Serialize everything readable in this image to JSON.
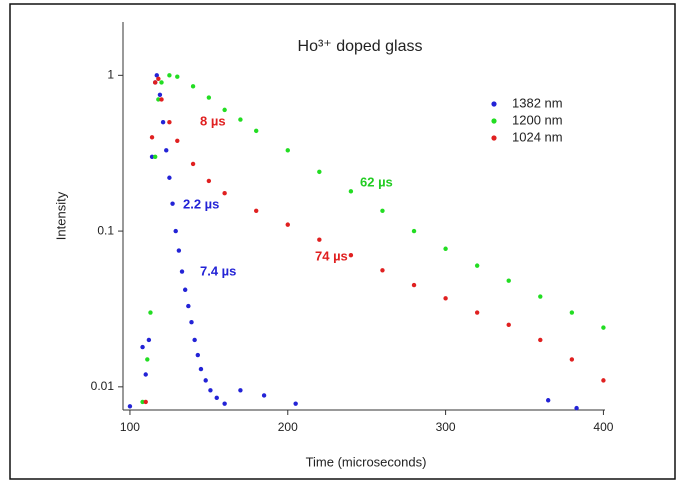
{
  "chart_data": {
    "type": "scatter",
    "title": "Ho³⁺ doped glass",
    "x_label": "Time (microseconds)",
    "y_label": "Intensity",
    "log_y": true,
    "xlim": [
      95.6,
      401
    ],
    "ylim": [
      0.0071,
      2.2
    ],
    "xticks": [
      100,
      200,
      300,
      400
    ],
    "yticks": [
      1,
      0.1,
      0.01
    ],
    "legend": "upper right",
    "series": [
      {
        "name": "1382 nm",
        "color": "#2323d6",
        "x": [
          100,
          108,
          110,
          112,
          114,
          116,
          117,
          119,
          121,
          123,
          125,
          127,
          129,
          131,
          133,
          135,
          137,
          139,
          141,
          143,
          145,
          148,
          151,
          155,
          160,
          170,
          185,
          205,
          365,
          383
        ],
        "values": [
          0.0075,
          0.018,
          0.012,
          0.02,
          0.3,
          0.9,
          1.0,
          0.75,
          0.5,
          0.33,
          0.22,
          0.15,
          0.1,
          0.075,
          0.055,
          0.042,
          0.033,
          0.026,
          0.02,
          0.016,
          0.013,
          0.011,
          0.0095,
          0.0085,
          0.0078,
          0.0095,
          0.0088,
          0.0078,
          0.0082,
          0.0073
        ]
      },
      {
        "name": "1200 nm",
        "color": "#22dd22",
        "x": [
          108,
          111,
          113,
          116,
          118,
          120,
          125,
          130,
          140,
          150,
          160,
          170,
          180,
          200,
          220,
          240,
          260,
          280,
          300,
          320,
          340,
          360,
          380,
          400
        ],
        "values": [
          0.008,
          0.015,
          0.03,
          0.3,
          0.7,
          0.9,
          1.0,
          0.98,
          0.85,
          0.72,
          0.6,
          0.52,
          0.44,
          0.33,
          0.24,
          0.18,
          0.135,
          0.1,
          0.077,
          0.06,
          0.048,
          0.038,
          0.03,
          0.024
        ]
      },
      {
        "name": "1024 nm",
        "color": "#e02020",
        "x": [
          110,
          114,
          116,
          118,
          120,
          125,
          130,
          140,
          150,
          160,
          180,
          200,
          220,
          240,
          260,
          280,
          300,
          320,
          340,
          360,
          380,
          400
        ],
        "values": [
          0.008,
          0.4,
          0.9,
          0.95,
          0.7,
          0.5,
          0.38,
          0.27,
          0.21,
          0.175,
          0.135,
          0.11,
          0.088,
          0.07,
          0.056,
          0.045,
          0.037,
          0.03,
          0.025,
          0.02,
          0.015,
          0.011
        ]
      }
    ],
    "annotations": [
      {
        "text": "8 µs",
        "color": "#e02020"
      },
      {
        "text": "2.2 µs",
        "color": "#2323d6"
      },
      {
        "text": "7.4 µs",
        "color": "#2323d6"
      },
      {
        "text": "62 µs",
        "color": "#22cc22"
      },
      {
        "text": "74 µs",
        "color": "#e02020"
      }
    ]
  }
}
